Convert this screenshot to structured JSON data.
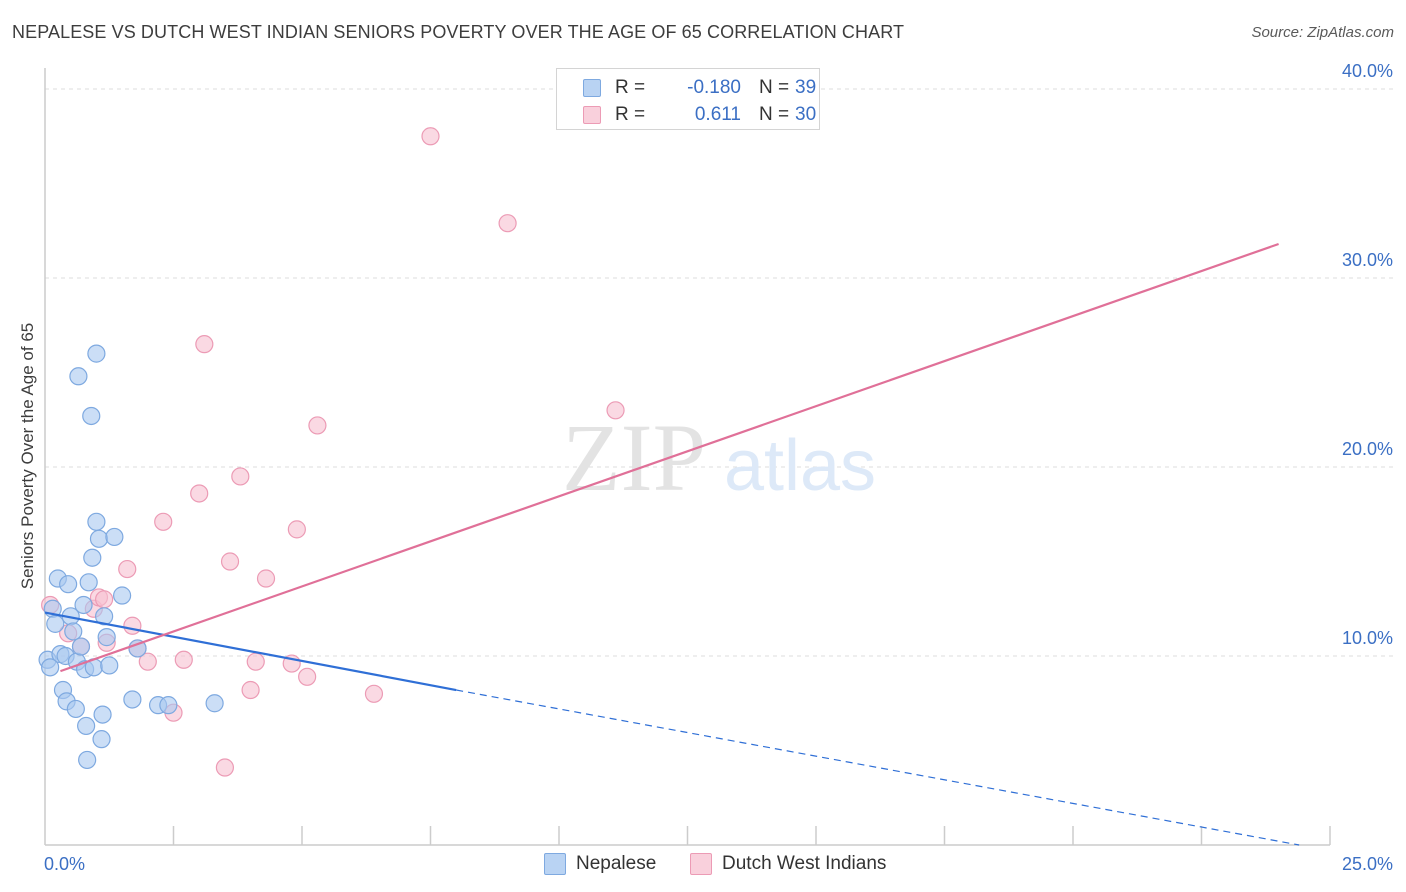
{
  "header": {
    "title": "NEPALESE VS DUTCH WEST INDIAN SENIORS POVERTY OVER THE AGE OF 65 CORRELATION CHART",
    "source": "Source: ZipAtlas.com"
  },
  "stats": [
    {
      "r_label": "R =",
      "r_value": "-0.180",
      "n_label": "N =",
      "n_value": "39"
    },
    {
      "r_label": "R =",
      "r_value": "0.611",
      "n_label": "N =",
      "n_value": "30"
    }
  ],
  "legend": {
    "items": [
      "Nepalese",
      "Dutch West Indians"
    ]
  },
  "watermark": {
    "zip": "ZIP",
    "atlas": "atlas"
  },
  "chart_data": {
    "type": "scatter",
    "ylabel": "Seniors Poverty Over the Age of 65",
    "xlim": [
      0,
      25
    ],
    "ylim": [
      0,
      40.9
    ],
    "x_tick_labels": [
      "0.0%",
      "25.0%"
    ],
    "y_ticks": [
      10,
      20,
      30,
      40
    ],
    "y_tick_labels": [
      "10.0%",
      "20.0%",
      "30.0%",
      "40.0%"
    ],
    "grid": true,
    "colors": {
      "nepalese_fill": "#a9c8f0",
      "nepalese_stroke": "#7ea9e0",
      "nepalese_line": "#2f6fd6",
      "dutch_fill": "#f6c0d0",
      "dutch_stroke": "#ec9bb5",
      "dutch_line": "#e07098",
      "tick_text": "#3b6fc4",
      "grid": "#dddddd",
      "axis": "#cccccc"
    },
    "series": [
      {
        "name": "Nepalese",
        "x": [
          0.05,
          0.1,
          0.15,
          0.2,
          0.25,
          0.3,
          0.35,
          0.4,
          0.42,
          0.45,
          0.5,
          0.55,
          0.6,
          0.62,
          0.65,
          0.7,
          0.75,
          0.78,
          0.8,
          0.82,
          0.85,
          0.9,
          0.92,
          0.95,
          1.0,
          1.0,
          1.05,
          1.1,
          1.12,
          1.15,
          1.2,
          1.25,
          1.35,
          1.5,
          1.7,
          1.8,
          2.2,
          2.4,
          3.3
        ],
        "y": [
          9.8,
          9.4,
          12.5,
          11.7,
          14.1,
          10.1,
          8.2,
          10.0,
          7.6,
          13.8,
          12.1,
          11.3,
          7.2,
          9.7,
          24.8,
          10.5,
          12.7,
          9.3,
          6.3,
          4.5,
          13.9,
          22.7,
          15.2,
          9.4,
          26.0,
          17.1,
          16.2,
          5.6,
          6.9,
          12.1,
          11.0,
          9.5,
          16.3,
          13.2,
          7.7,
          10.4,
          7.4,
          7.4,
          7.5
        ]
      },
      {
        "name": "Dutch West Indians",
        "x": [
          0.1,
          0.45,
          0.7,
          0.95,
          1.05,
          1.15,
          1.2,
          1.6,
          1.7,
          1.8,
          2.0,
          2.3,
          2.5,
          2.7,
          3.0,
          3.1,
          3.5,
          3.6,
          3.8,
          4.0,
          4.1,
          4.3,
          4.8,
          4.9,
          5.1,
          5.3,
          6.4,
          7.5,
          9.0,
          11.1
        ],
        "y": [
          12.7,
          11.2,
          10.5,
          12.5,
          13.1,
          13.0,
          10.7,
          14.6,
          11.6,
          10.4,
          9.7,
          17.1,
          7.0,
          9.8,
          18.6,
          26.5,
          4.1,
          15.0,
          19.5,
          8.2,
          9.7,
          14.1,
          9.6,
          16.7,
          8.9,
          22.2,
          8.0,
          37.5,
          32.9,
          23.0
        ]
      }
    ],
    "trend_lines": [
      {
        "series": "Nepalese",
        "x": [
          0,
          8.0
        ],
        "y": [
          12.3,
          8.2
        ],
        "dashed_extension_to_x": 24.4,
        "dashed_extension_y": 0
      },
      {
        "series": "Dutch West Indians",
        "x": [
          0.3,
          24.0
        ],
        "y": [
          9.2,
          31.8
        ]
      }
    ]
  }
}
